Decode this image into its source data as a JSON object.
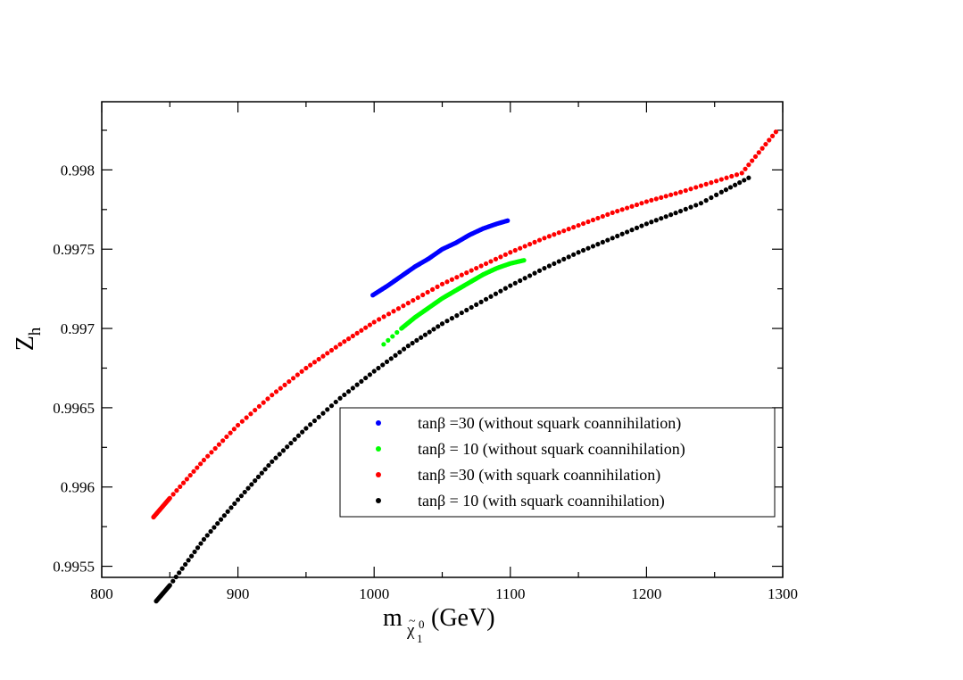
{
  "chart_data": {
    "type": "scatter",
    "title": "",
    "xlabel": {
      "main": "m",
      "sub_accent": "~",
      "sub_symbol": "χ",
      "sub_sup": "0",
      "sub_sub": "1",
      "unit": "(GeV)"
    },
    "ylabel": {
      "main": "Z",
      "sub": "h"
    },
    "xlim": [
      800,
      1300
    ],
    "ylim": [
      0.99543,
      0.99843
    ],
    "x_ticks": [
      800,
      900,
      1000,
      1100,
      1200,
      1300
    ],
    "x_tick_labels": [
      "800",
      "900",
      "1000",
      "1100",
      "1200",
      "1300"
    ],
    "y_ticks": [
      0.9955,
      0.996,
      0.9965,
      0.997,
      0.9975,
      0.998
    ],
    "y_tick_labels": [
      "0.9955",
      "0.996",
      "0.9965",
      "0.997",
      "0.9975",
      "0.998"
    ],
    "grid": false,
    "legend_position": "bottom-right",
    "series": [
      {
        "name": "tanβ =30 (without squark coannihilation)",
        "color": "#0000ff",
        "points": [
          [
            999,
            0.99721
          ],
          [
            1010,
            0.99727
          ],
          [
            1020,
            0.99733
          ],
          [
            1030,
            0.99739
          ],
          [
            1040,
            0.99744
          ],
          [
            1050,
            0.9975
          ],
          [
            1060,
            0.99754
          ],
          [
            1070,
            0.99759
          ],
          [
            1080,
            0.99763
          ],
          [
            1090,
            0.99766
          ],
          [
            1098,
            0.99768
          ]
        ]
      },
      {
        "name": "tanβ = 10 (without squark coannihilation)",
        "color": "#00ff00",
        "points": [
          [
            1007,
            0.9969
          ],
          [
            1020,
            0.997
          ],
          [
            1030,
            0.99707
          ],
          [
            1040,
            0.99713
          ],
          [
            1050,
            0.99719
          ],
          [
            1060,
            0.99724
          ],
          [
            1070,
            0.99729
          ],
          [
            1080,
            0.99734
          ],
          [
            1090,
            0.99738
          ],
          [
            1100,
            0.99741
          ],
          [
            1110,
            0.99743
          ]
        ]
      },
      {
        "name": "tanβ =30 (with squark coannihilation)",
        "color": "#ff0000",
        "points": [
          [
            838,
            0.99581
          ],
          [
            850,
            0.99593
          ],
          [
            875,
            0.99617
          ],
          [
            900,
            0.99639
          ],
          [
            925,
            0.99658
          ],
          [
            950,
            0.99675
          ],
          [
            975,
            0.9969
          ],
          [
            1000,
            0.99704
          ],
          [
            1025,
            0.99716
          ],
          [
            1050,
            0.99728
          ],
          [
            1075,
            0.99738
          ],
          [
            1100,
            0.99748
          ],
          [
            1125,
            0.99757
          ],
          [
            1150,
            0.99765
          ],
          [
            1175,
            0.99773
          ],
          [
            1200,
            0.9978
          ],
          [
            1225,
            0.99786
          ],
          [
            1240,
            0.9979
          ],
          [
            1255,
            0.99794
          ],
          [
            1270,
            0.99798
          ],
          [
            1295,
            0.99824
          ]
        ]
      },
      {
        "name": "tanβ = 10 (with squark coannihilation)",
        "color": "#000000",
        "points": [
          [
            840,
            0.99528
          ],
          [
            850,
            0.99538
          ],
          [
            875,
            0.99567
          ],
          [
            900,
            0.99592
          ],
          [
            925,
            0.99616
          ],
          [
            950,
            0.99637
          ],
          [
            975,
            0.99656
          ],
          [
            1000,
            0.99673
          ],
          [
            1025,
            0.99689
          ],
          [
            1050,
            0.99703
          ],
          [
            1075,
            0.99715
          ],
          [
            1100,
            0.99727
          ],
          [
            1125,
            0.99738
          ],
          [
            1150,
            0.99748
          ],
          [
            1175,
            0.99757
          ],
          [
            1200,
            0.99766
          ],
          [
            1225,
            0.99774
          ],
          [
            1240,
            0.99779
          ],
          [
            1255,
            0.99786
          ],
          [
            1275,
            0.99795
          ]
        ]
      }
    ]
  }
}
